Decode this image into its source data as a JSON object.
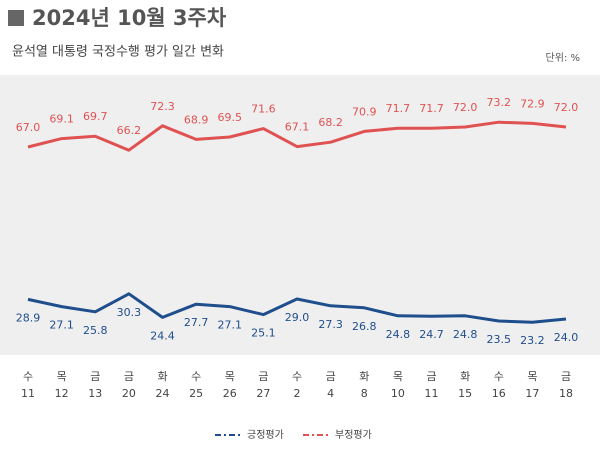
{
  "chart_data": {
    "type": "line",
    "title": "2024년 10월 3주차",
    "subtitle": "윤석열 대통령 국정수행 평가 일간 변화",
    "unit": "단위: %",
    "weekdays": [
      "수",
      "목",
      "금",
      "금",
      "화",
      "수",
      "목",
      "금",
      "수",
      "금",
      "화",
      "목",
      "금",
      "화",
      "수",
      "목",
      "금"
    ],
    "categories": [
      "11",
      "12",
      "13",
      "20",
      "24",
      "25",
      "26",
      "27",
      "2",
      "4",
      "8",
      "10",
      "11",
      "15",
      "16",
      "17",
      "18"
    ],
    "ylim": [
      15,
      85
    ],
    "series": [
      {
        "name": "긍정평가",
        "color": "#1f4e8c",
        "values": [
          28.9,
          27.1,
          25.8,
          30.3,
          24.4,
          27.7,
          27.1,
          25.1,
          29.0,
          27.3,
          26.8,
          24.8,
          24.7,
          24.8,
          23.5,
          23.2,
          24.0
        ],
        "value_labels": [
          "28.9",
          "27.1",
          "25.8",
          "30.3",
          "24.4",
          "27.7",
          "27.1",
          "25.1",
          "29.0",
          "27.3",
          "26.8",
          "24.8",
          "24.7",
          "24.8",
          "23.5",
          "23.2",
          "24.0"
        ]
      },
      {
        "name": "부정평가",
        "color": "#e05252",
        "values": [
          67.0,
          69.1,
          69.7,
          66.2,
          72.3,
          68.9,
          69.5,
          71.6,
          67.1,
          68.2,
          70.9,
          71.7,
          71.7,
          72.0,
          73.2,
          72.9,
          72.0
        ],
        "value_labels": [
          "67.0",
          "69.1",
          "69.7",
          "66.2",
          "72.3",
          "68.9",
          "69.5",
          "71.6",
          "67.1",
          "68.2",
          "70.9",
          "71.7",
          "71.7",
          "72.0",
          "73.2",
          "72.9",
          "72.0"
        ]
      }
    ]
  }
}
